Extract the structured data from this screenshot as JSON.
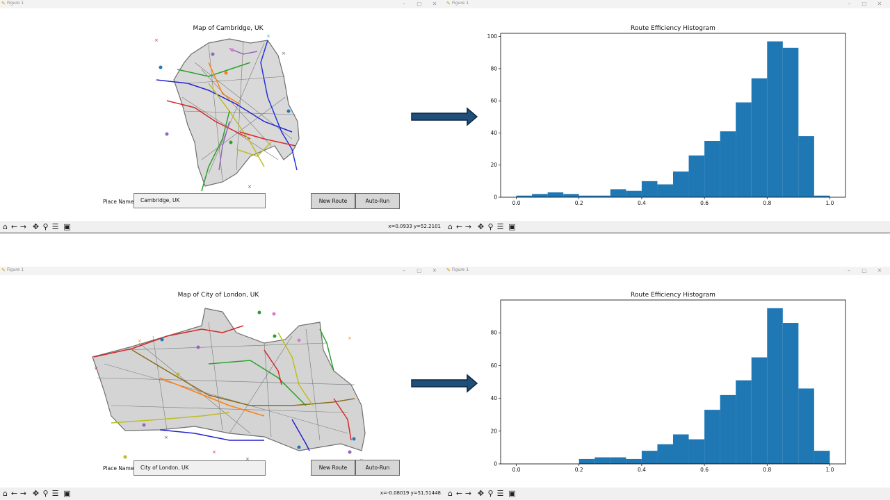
{
  "window_title": "Figure 1",
  "toolbar_icons": [
    "home-icon",
    "back-arrow-icon",
    "forward-arrow-icon",
    "pan-icon",
    "zoom-icon",
    "configure-subplots-icon",
    "save-icon"
  ],
  "colors": {
    "bar": "#1f77b4",
    "arrow_fill": "#1f4e79",
    "arrow_stroke": "#0d2740",
    "road": "#888888"
  },
  "top": {
    "map": {
      "title": "Map of Cambridge, UK",
      "place_label": "Place Name",
      "place_value": "Cambridge, UK",
      "new_route_label": "New Route",
      "auto_run_label": "Auto-Run",
      "coords": "x=0.0933 y=52.2101"
    },
    "chart": {
      "title": "Route Efficiency Histogram"
    }
  },
  "bottom": {
    "map": {
      "title": "Map of City of London, UK",
      "place_label": "Place Name",
      "place_value": "City of London, UK",
      "new_route_label": "New Route",
      "auto_run_label": "Auto-Run",
      "coords": "x=-0.08019 y=51.51448"
    },
    "chart": {
      "title": "Route Efficiency Histogram"
    }
  },
  "chart_data": [
    {
      "type": "bar",
      "title": "Route Efficiency Histogram",
      "bin_edges": [
        0.0,
        0.05,
        0.1,
        0.15,
        0.2,
        0.25,
        0.3,
        0.35,
        0.4,
        0.45,
        0.5,
        0.55,
        0.6,
        0.65,
        0.7,
        0.75,
        0.8,
        0.85,
        0.9,
        0.95,
        1.0
      ],
      "values": [
        1,
        2,
        3,
        2,
        1,
        1,
        5,
        4,
        10,
        8,
        16,
        26,
        35,
        41,
        59,
        74,
        97,
        93,
        38,
        1
      ],
      "xlim": [
        -0.05,
        1.05
      ],
      "ylim": [
        0,
        102
      ],
      "xticks": [
        "0.0",
        "0.2",
        "0.4",
        "0.6",
        "0.8",
        "1.0"
      ],
      "yticks": [
        "0",
        "20",
        "40",
        "60",
        "80",
        "100"
      ]
    },
    {
      "type": "bar",
      "title": "Route Efficiency Histogram",
      "bin_edges": [
        0.2,
        0.25,
        0.3,
        0.35,
        0.4,
        0.45,
        0.5,
        0.55,
        0.6,
        0.65,
        0.7,
        0.75,
        0.8,
        0.85,
        0.9,
        0.95,
        1.0
      ],
      "values": [
        3,
        4,
        4,
        3,
        8,
        12,
        18,
        15,
        33,
        42,
        51,
        65,
        95,
        86,
        46,
        8
      ],
      "xlim": [
        -0.05,
        1.05
      ],
      "ylim": [
        0,
        100
      ],
      "xticks": [
        "0.0",
        "0.2",
        "0.4",
        "0.6",
        "0.8",
        "1.0"
      ],
      "yticks": [
        "0",
        "20",
        "40",
        "60",
        "80"
      ]
    }
  ]
}
